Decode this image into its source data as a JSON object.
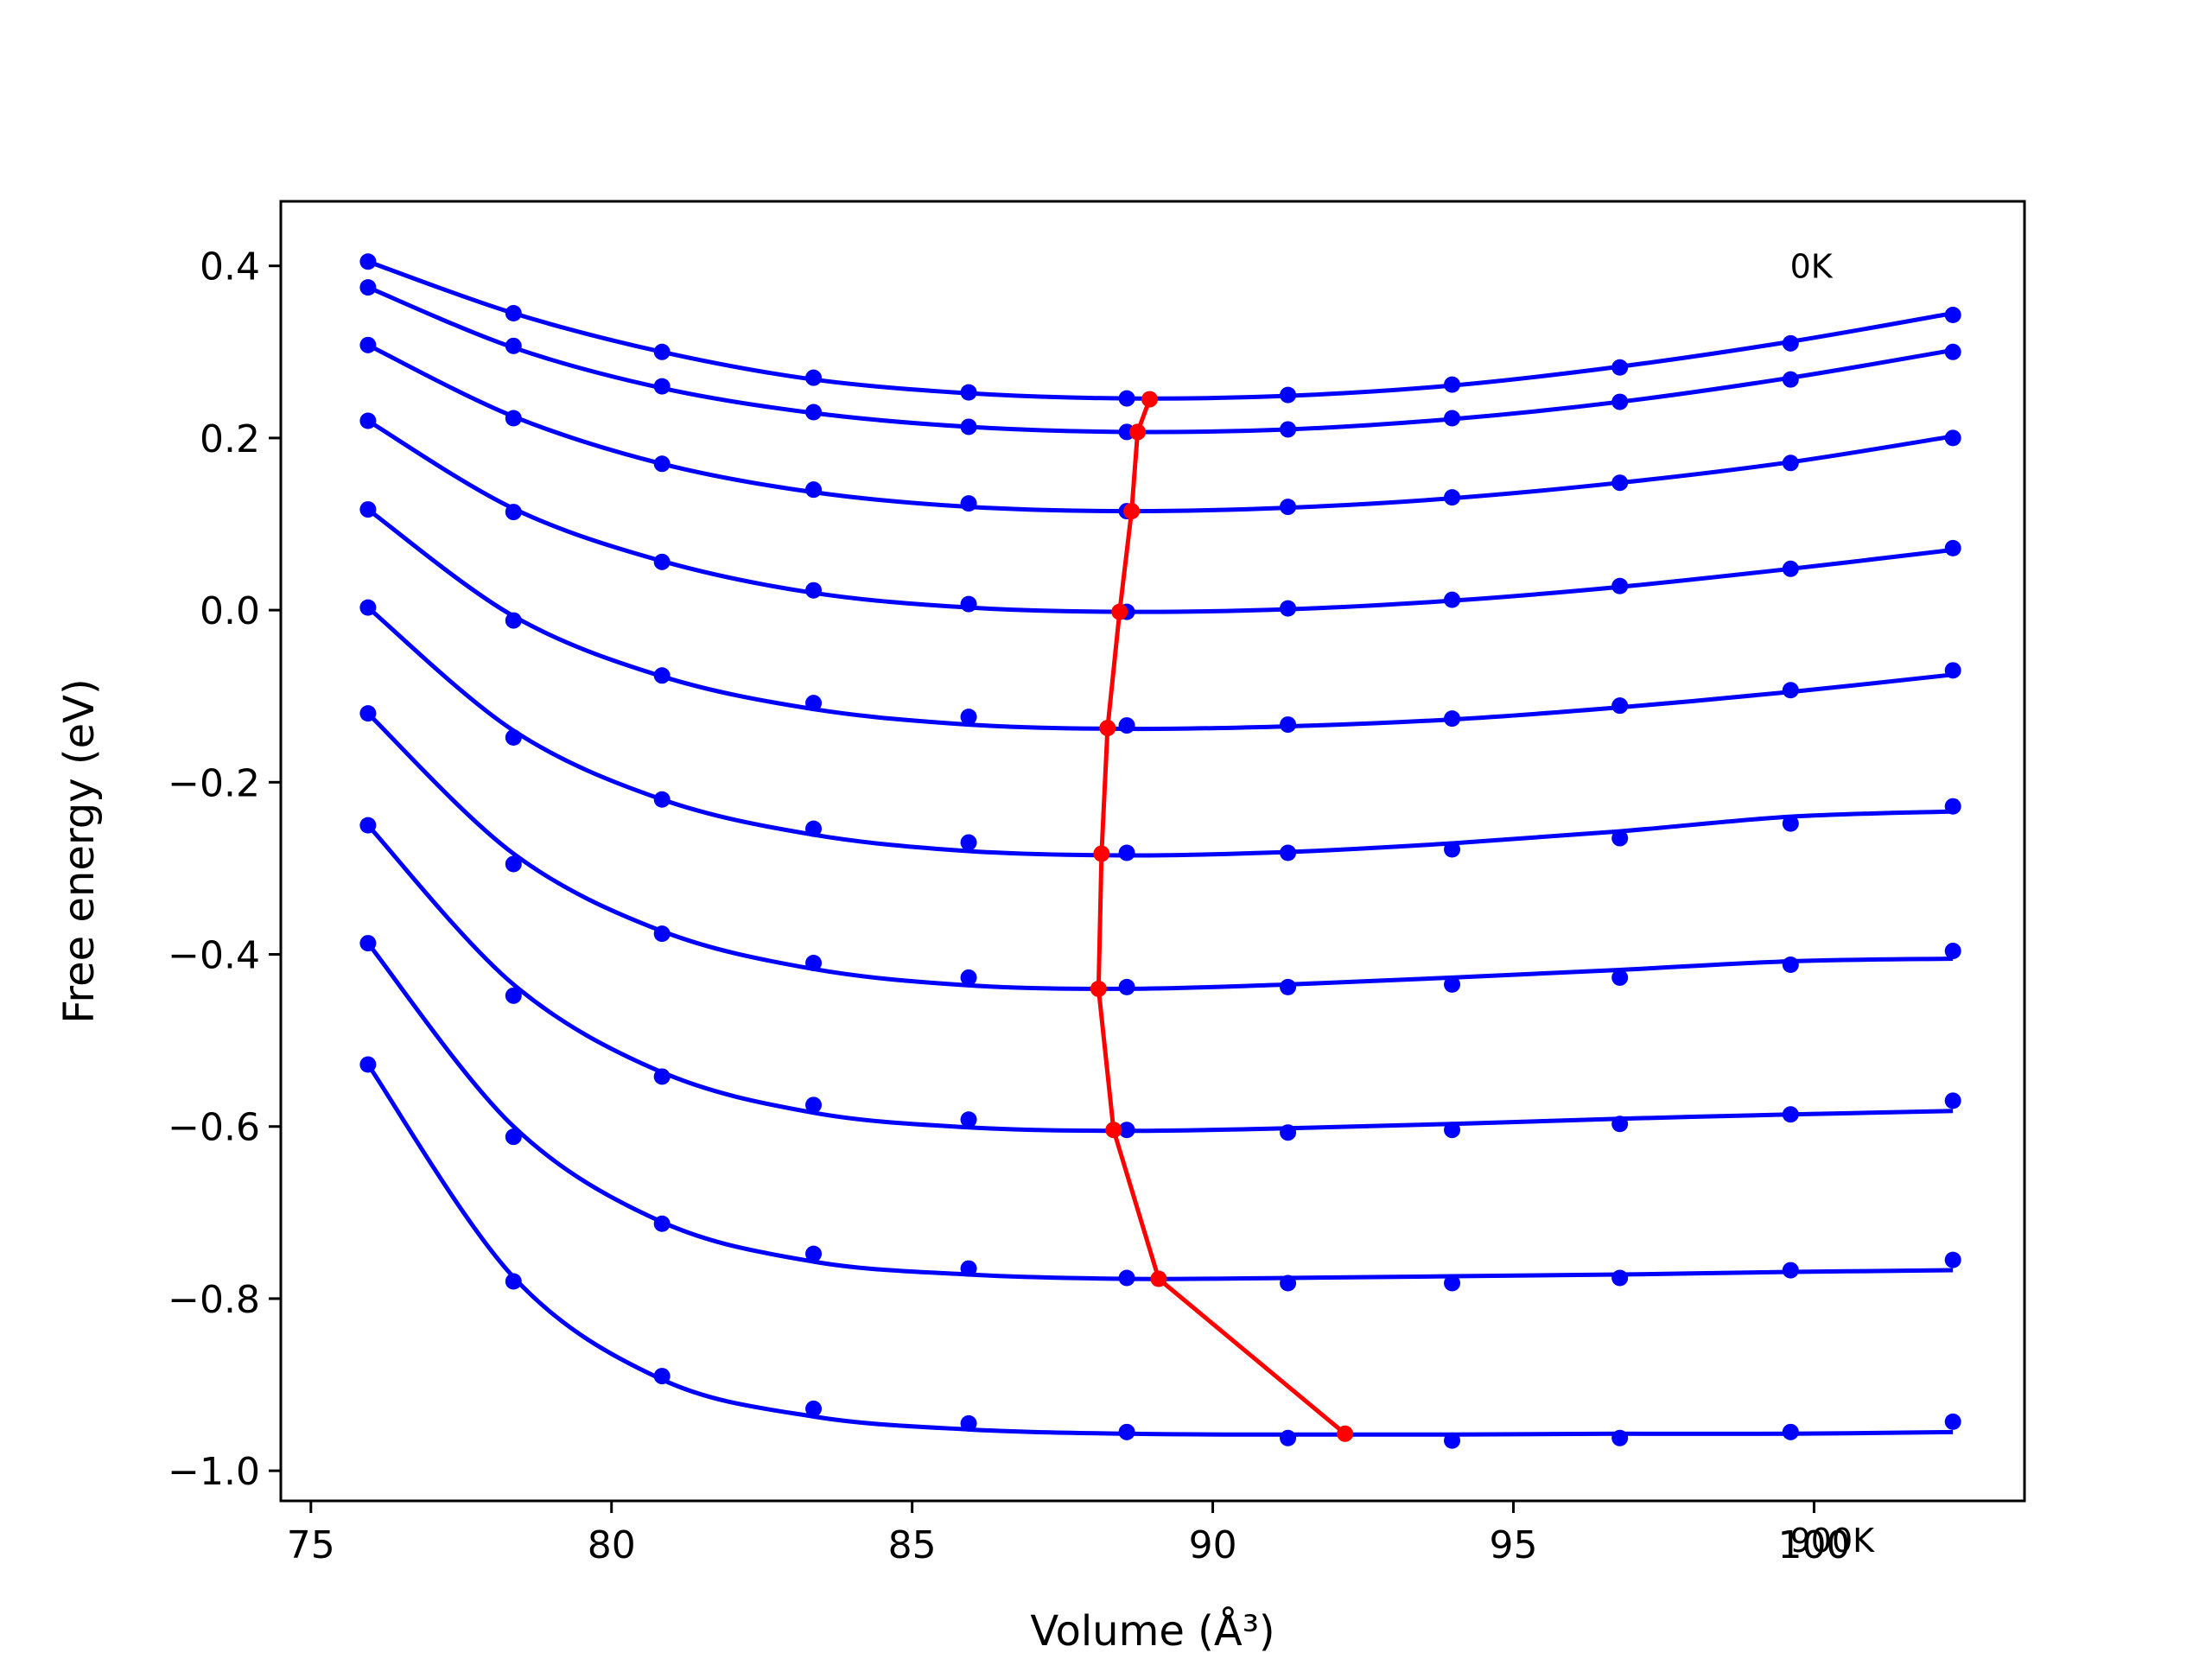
{
  "chart_data": {
    "type": "line",
    "xlabel": "Volume (Å³)",
    "ylabel": "Free energy (eV)",
    "xlim": [
      74.5,
      103.5
    ],
    "ylim": [
      -1.035,
      0.475
    ],
    "x_ticks": [
      75,
      80,
      85,
      90,
      95,
      100
    ],
    "x_tick_labels": [
      "75",
      "80",
      "85",
      "90",
      "95",
      "100"
    ],
    "y_ticks": [
      0.4,
      0.2,
      0.0,
      -0.2,
      -0.4,
      -0.6,
      -0.8,
      -1.0
    ],
    "y_tick_labels": [
      "0.4",
      "0.2",
      "0.0",
      "−0.2",
      "−0.4",
      "−0.6",
      "−0.8",
      "−1.0"
    ],
    "grid": false,
    "annotations": [
      {
        "text": "0K",
        "x": 99.6,
        "y": 0.4
      },
      {
        "text": "900K",
        "x": 99.6,
        "y": -1.08
      }
    ],
    "colors": {
      "isotherm": "#0000ff",
      "minimum_path": "#ff0000",
      "axes": "#000000"
    },
    "x": [
      75.95,
      78.37,
      80.84,
      83.36,
      85.94,
      88.57,
      91.25,
      93.98,
      96.77,
      99.61,
      102.31
    ],
    "series": [
      {
        "values": [
          0.405,
          0.345,
          0.3,
          0.27,
          0.253,
          0.246,
          0.25,
          0.262,
          0.282,
          0.31,
          0.343
        ],
        "fit": [
          0.405,
          0.345,
          0.3,
          0.268,
          0.252,
          0.246,
          0.249,
          0.261,
          0.283,
          0.312,
          0.345
        ]
      },
      {
        "values": [
          0.375,
          0.307,
          0.26,
          0.23,
          0.213,
          0.207,
          0.21,
          0.223,
          0.242,
          0.268,
          0.3
        ],
        "fit": [
          0.375,
          0.305,
          0.258,
          0.229,
          0.213,
          0.207,
          0.21,
          0.222,
          0.242,
          0.27,
          0.302
        ]
      },
      {
        "values": [
          0.308,
          0.223,
          0.17,
          0.14,
          0.124,
          0.115,
          0.12,
          0.131,
          0.148,
          0.171,
          0.2
        ],
        "fit": [
          0.308,
          0.225,
          0.17,
          0.137,
          0.12,
          0.115,
          0.119,
          0.13,
          0.148,
          0.172,
          0.202
        ]
      },
      {
        "values": [
          0.22,
          0.114,
          0.056,
          0.023,
          0.007,
          -0.002,
          0.002,
          0.012,
          0.028,
          0.048,
          0.072
        ],
        "fit": [
          0.22,
          0.118,
          0.057,
          0.02,
          0.003,
          -0.002,
          0.001,
          0.011,
          0.027,
          0.048,
          0.07
        ]
      },
      {
        "values": [
          0.117,
          -0.012,
          -0.076,
          -0.108,
          -0.124,
          -0.134,
          -0.133,
          -0.126,
          -0.111,
          -0.093,
          -0.07
        ],
        "fit": [
          0.117,
          -0.007,
          -0.077,
          -0.115,
          -0.133,
          -0.138,
          -0.135,
          -0.127,
          -0.113,
          -0.095,
          -0.075
        ]
      },
      {
        "values": [
          0.003,
          -0.148,
          -0.22,
          -0.254,
          -0.27,
          -0.282,
          -0.282,
          -0.278,
          -0.265,
          -0.248,
          -0.228
        ],
        "fit": [
          0.003,
          -0.14,
          -0.22,
          -0.261,
          -0.28,
          -0.285,
          -0.281,
          -0.271,
          -0.257,
          -0.24,
          -0.234
        ]
      },
      {
        "values": [
          -0.12,
          -0.295,
          -0.376,
          -0.41,
          -0.427,
          -0.438,
          -0.438,
          -0.435,
          -0.427,
          -0.412,
          -0.396
        ],
        "fit": [
          -0.12,
          -0.283,
          -0.373,
          -0.417,
          -0.436,
          -0.44,
          -0.435,
          -0.427,
          -0.418,
          -0.408,
          -0.405
        ]
      },
      {
        "values": [
          -0.25,
          -0.448,
          -0.542,
          -0.575,
          -0.592,
          -0.604,
          -0.607,
          -0.604,
          -0.597,
          -0.586,
          -0.57
        ],
        "fit": [
          -0.25,
          -0.435,
          -0.537,
          -0.584,
          -0.601,
          -0.605,
          -0.602,
          -0.597,
          -0.591,
          -0.586,
          -0.582
        ]
      },
      {
        "values": [
          -0.387,
          -0.612,
          -0.713,
          -0.748,
          -0.765,
          -0.776,
          -0.782,
          -0.782,
          -0.776,
          -0.767,
          -0.755
        ],
        "fit": [
          -0.387,
          -0.6,
          -0.711,
          -0.757,
          -0.772,
          -0.777,
          -0.776,
          -0.774,
          -0.772,
          -0.769,
          -0.767
        ]
      },
      {
        "values": [
          -0.528,
          -0.78,
          -0.89,
          -0.928,
          -0.945,
          -0.955,
          -0.962,
          -0.965,
          -0.962,
          -0.955,
          -0.943
        ],
        "fit": [
          -0.528,
          -0.775,
          -0.894,
          -0.937,
          -0.952,
          -0.957,
          -0.958,
          -0.958,
          -0.957,
          -0.957,
          -0.955
        ]
      }
    ],
    "minimum_path": {
      "x": [
        88.95,
        88.75,
        88.65,
        88.45,
        88.25,
        88.15,
        88.1,
        88.35,
        89.1,
        92.2
      ],
      "y": [
        0.245,
        0.207,
        0.115,
        -0.002,
        -0.137,
        -0.283,
        -0.44,
        -0.604,
        -0.777,
        -0.957
      ]
    }
  }
}
